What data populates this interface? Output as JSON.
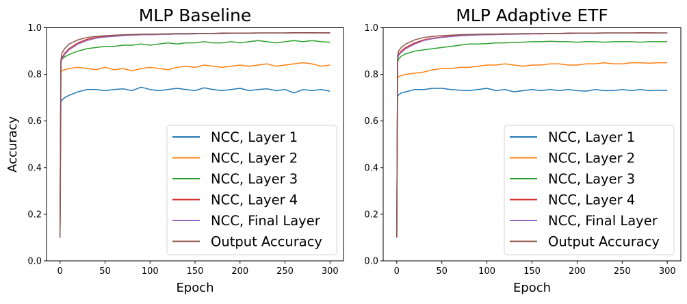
{
  "chart_data": [
    {
      "type": "line",
      "title": "MLP Baseline",
      "xlabel": "Epoch",
      "ylabel": "Accuracy",
      "xlim": [
        -15,
        315
      ],
      "ylim": [
        0,
        1
      ],
      "xticks": [
        "0",
        "50",
        "100",
        "150",
        "200",
        "250",
        "300"
      ],
      "yticks": [
        "0.0",
        "0.2",
        "0.4",
        "0.6",
        "0.8",
        "1.0"
      ],
      "legend_position": "lower-right",
      "x": [
        0,
        1,
        2,
        5,
        10,
        20,
        30,
        40,
        50,
        60,
        70,
        80,
        90,
        100,
        110,
        120,
        130,
        140,
        150,
        160,
        170,
        180,
        190,
        200,
        210,
        220,
        230,
        240,
        250,
        260,
        270,
        280,
        290,
        300
      ],
      "series": [
        {
          "name": "NCC, Layer 1",
          "color": "#1f77b4",
          "values": [
            0.1,
            0.68,
            0.69,
            0.7,
            0.71,
            0.725,
            0.735,
            0.735,
            0.73,
            0.735,
            0.738,
            0.73,
            0.745,
            0.735,
            0.73,
            0.735,
            0.74,
            0.735,
            0.73,
            0.742,
            0.735,
            0.73,
            0.735,
            0.74,
            0.73,
            0.735,
            0.738,
            0.73,
            0.735,
            0.72,
            0.735,
            0.73,
            0.735,
            0.728
          ]
        },
        {
          "name": "NCC, Layer 2",
          "color": "#ff7f0e",
          "values": [
            0.1,
            0.81,
            0.815,
            0.82,
            0.825,
            0.83,
            0.825,
            0.82,
            0.83,
            0.82,
            0.825,
            0.815,
            0.825,
            0.83,
            0.825,
            0.82,
            0.83,
            0.835,
            0.83,
            0.84,
            0.835,
            0.83,
            0.835,
            0.84,
            0.835,
            0.84,
            0.845,
            0.835,
            0.84,
            0.845,
            0.85,
            0.845,
            0.835,
            0.84
          ]
        },
        {
          "name": "NCC, Layer 3",
          "color": "#2ca02c",
          "values": [
            0.1,
            0.85,
            0.865,
            0.875,
            0.885,
            0.9,
            0.91,
            0.915,
            0.92,
            0.92,
            0.925,
            0.925,
            0.93,
            0.925,
            0.93,
            0.935,
            0.93,
            0.935,
            0.935,
            0.94,
            0.935,
            0.935,
            0.94,
            0.935,
            0.94,
            0.945,
            0.94,
            0.935,
            0.94,
            0.945,
            0.94,
            0.945,
            0.94,
            0.938
          ]
        },
        {
          "name": "NCC, Layer 4",
          "color": "#d62728",
          "values": [
            0.1,
            0.855,
            0.87,
            0.89,
            0.91,
            0.935,
            0.95,
            0.958,
            0.962,
            0.965,
            0.967,
            0.968,
            0.97,
            0.97,
            0.972,
            0.972,
            0.973,
            0.974,
            0.974,
            0.975,
            0.975,
            0.975,
            0.976,
            0.976,
            0.976,
            0.977,
            0.977,
            0.977,
            0.977,
            0.978,
            0.978,
            0.978,
            0.978,
            0.978
          ]
        },
        {
          "name": "NCC, Final Layer",
          "color": "#9467bd",
          "values": [
            0.1,
            0.85,
            0.865,
            0.885,
            0.905,
            0.93,
            0.945,
            0.955,
            0.96,
            0.963,
            0.966,
            0.968,
            0.97,
            0.97,
            0.971,
            0.972,
            0.973,
            0.973,
            0.974,
            0.975,
            0.975,
            0.975,
            0.976,
            0.976,
            0.976,
            0.977,
            0.977,
            0.977,
            0.977,
            0.978,
            0.978,
            0.978,
            0.978,
            0.978
          ]
        },
        {
          "name": "Output Accuracy",
          "color": "#8c564b",
          "values": [
            0.1,
            0.86,
            0.89,
            0.91,
            0.93,
            0.948,
            0.958,
            0.963,
            0.966,
            0.968,
            0.97,
            0.971,
            0.972,
            0.973,
            0.973,
            0.974,
            0.975,
            0.975,
            0.976,
            0.976,
            0.976,
            0.977,
            0.977,
            0.977,
            0.977,
            0.978,
            0.978,
            0.978,
            0.978,
            0.979,
            0.979,
            0.979,
            0.978,
            0.978
          ]
        }
      ]
    },
    {
      "type": "line",
      "title": "MLP Adaptive ETF",
      "xlabel": "Epoch",
      "ylabel": "",
      "xlim": [
        -15,
        315
      ],
      "ylim": [
        0,
        1
      ],
      "xticks": [
        "0",
        "50",
        "100",
        "150",
        "200",
        "250",
        "300"
      ],
      "yticks": [
        "0.0",
        "0.2",
        "0.4",
        "0.6",
        "0.8",
        "1.0"
      ],
      "legend_position": "lower-right",
      "x": [
        0,
        1,
        2,
        5,
        10,
        20,
        30,
        40,
        50,
        60,
        70,
        80,
        90,
        100,
        110,
        120,
        130,
        140,
        150,
        160,
        170,
        180,
        190,
        200,
        210,
        220,
        230,
        240,
        250,
        260,
        270,
        280,
        290,
        300
      ],
      "series": [
        {
          "name": "NCC, Layer 1",
          "color": "#1f77b4",
          "values": [
            0.1,
            0.705,
            0.712,
            0.72,
            0.725,
            0.735,
            0.735,
            0.74,
            0.74,
            0.735,
            0.732,
            0.73,
            0.735,
            0.74,
            0.73,
            0.735,
            0.725,
            0.73,
            0.735,
            0.73,
            0.735,
            0.73,
            0.735,
            0.73,
            0.728,
            0.735,
            0.73,
            0.73,
            0.735,
            0.73,
            0.735,
            0.73,
            0.732,
            0.73
          ]
        },
        {
          "name": "NCC, Layer 2",
          "color": "#ff7f0e",
          "values": [
            0.1,
            0.785,
            0.79,
            0.795,
            0.8,
            0.805,
            0.81,
            0.82,
            0.825,
            0.825,
            0.83,
            0.83,
            0.835,
            0.84,
            0.84,
            0.845,
            0.84,
            0.835,
            0.84,
            0.84,
            0.845,
            0.845,
            0.84,
            0.84,
            0.845,
            0.845,
            0.85,
            0.845,
            0.845,
            0.85,
            0.85,
            0.848,
            0.85,
            0.85
          ]
        },
        {
          "name": "NCC, Layer 3",
          "color": "#2ca02c",
          "values": [
            0.1,
            0.85,
            0.865,
            0.878,
            0.888,
            0.9,
            0.905,
            0.91,
            0.915,
            0.92,
            0.925,
            0.93,
            0.93,
            0.932,
            0.935,
            0.935,
            0.937,
            0.938,
            0.94,
            0.94,
            0.942,
            0.94,
            0.94,
            0.938,
            0.94,
            0.94,
            0.938,
            0.94,
            0.94,
            0.94,
            0.938,
            0.94,
            0.94,
            0.94
          ]
        },
        {
          "name": "NCC, Layer 4",
          "color": "#d62728",
          "values": [
            0.1,
            0.87,
            0.885,
            0.9,
            0.915,
            0.935,
            0.948,
            0.955,
            0.96,
            0.964,
            0.966,
            0.968,
            0.97,
            0.97,
            0.971,
            0.972,
            0.973,
            0.973,
            0.974,
            0.974,
            0.975,
            0.975,
            0.975,
            0.976,
            0.976,
            0.976,
            0.977,
            0.977,
            0.977,
            0.977,
            0.978,
            0.978,
            0.977,
            0.977
          ]
        },
        {
          "name": "NCC, Final Layer",
          "color": "#9467bd",
          "values": [
            0.1,
            0.865,
            0.88,
            0.895,
            0.91,
            0.93,
            0.945,
            0.953,
            0.958,
            0.962,
            0.965,
            0.967,
            0.969,
            0.97,
            0.971,
            0.972,
            0.972,
            0.973,
            0.974,
            0.974,
            0.975,
            0.975,
            0.975,
            0.976,
            0.976,
            0.976,
            0.977,
            0.977,
            0.977,
            0.977,
            0.978,
            0.978,
            0.977,
            0.977
          ]
        },
        {
          "name": "Output Accuracy",
          "color": "#8c564b",
          "values": [
            0.1,
            0.88,
            0.9,
            0.915,
            0.93,
            0.948,
            0.958,
            0.963,
            0.966,
            0.968,
            0.97,
            0.971,
            0.972,
            0.973,
            0.973,
            0.974,
            0.974,
            0.975,
            0.975,
            0.976,
            0.976,
            0.976,
            0.977,
            0.977,
            0.977,
            0.977,
            0.978,
            0.978,
            0.978,
            0.978,
            0.978,
            0.978,
            0.978,
            0.978
          ]
        }
      ]
    }
  ]
}
